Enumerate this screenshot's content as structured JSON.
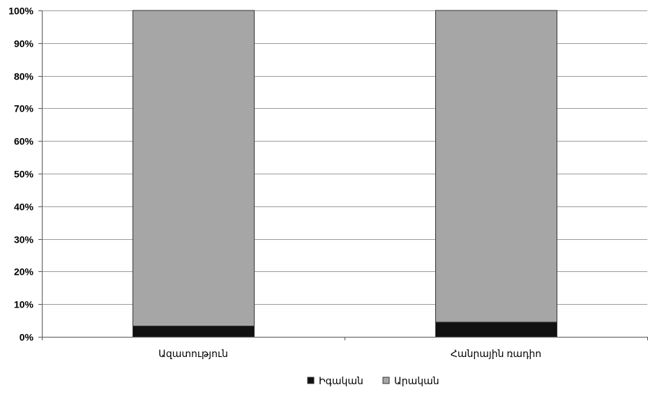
{
  "chart_data": {
    "type": "bar",
    "stacked": true,
    "percent_stacked": true,
    "categories": [
      "Ազատություն",
      "Հանրային ռադիո"
    ],
    "series": [
      {
        "name": "Իգական",
        "values": [
          3.3,
          4.5
        ],
        "color": "#111111"
      },
      {
        "name": "Արական",
        "values": [
          96.7,
          95.5
        ],
        "color": "#a6a6a6"
      }
    ],
    "ylim": [
      0,
      100
    ],
    "yticks": [
      0,
      10,
      20,
      30,
      40,
      50,
      60,
      70,
      80,
      90,
      100
    ],
    "ytick_labels": [
      "0%",
      "10%",
      "20%",
      "30%",
      "40%",
      "50%",
      "60%",
      "70%",
      "80%",
      "90%",
      "100%"
    ],
    "title": "",
    "xlabel": "",
    "ylabel": "",
    "grid": true,
    "legend_position": "bottom-center",
    "colors": {
      "grid": "#9a9a9a",
      "axis": "#555555",
      "bar_outline": "#333333"
    }
  }
}
